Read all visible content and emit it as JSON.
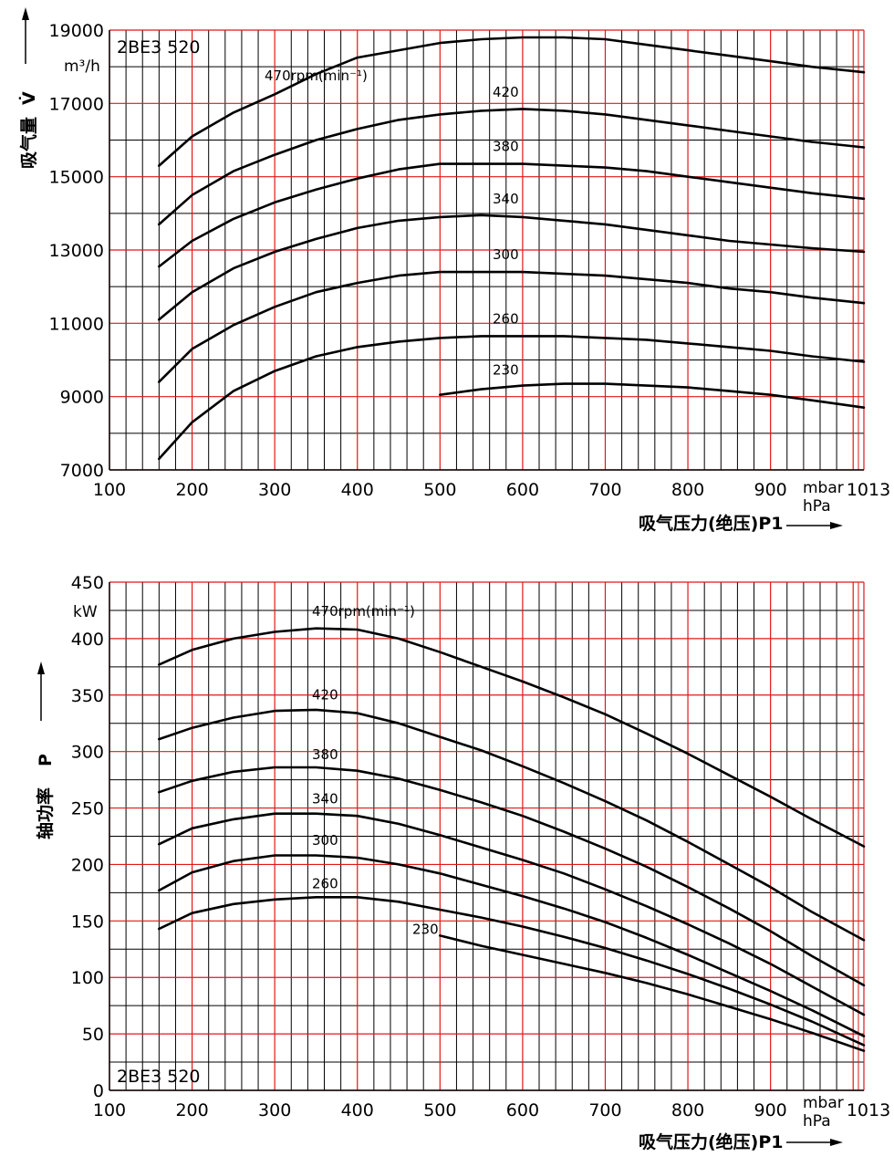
{
  "colors": {
    "major_grid": "#e01818",
    "minor_grid": "#000000",
    "curve": "#000000"
  },
  "chart_data": [
    {
      "type": "line",
      "model": "2BE3 520",
      "ylabel": "吸气量",
      "ylabel_symbol": "V̇",
      "yunit": "m³/h",
      "xlabel": "吸气压力(绝压)P1",
      "xunit_1": "mbar",
      "xunit_2": "hPa",
      "x_ticks": [
        "100",
        "200",
        "300",
        "400",
        "500",
        "600",
        "700",
        "800",
        "900",
        "1013"
      ],
      "y_ticks": [
        "7000",
        "9000",
        "11000",
        "13000",
        "15000",
        "17000",
        "19000"
      ],
      "xlim": [
        100,
        1013
      ],
      "ylim": [
        7000,
        19000
      ],
      "series": [
        {
          "name": "470rpm(min⁻¹)",
          "x": [
            160,
            200,
            250,
            300,
            350,
            400,
            450,
            500,
            550,
            600,
            650,
            700,
            750,
            800,
            850,
            900,
            950,
            1013
          ],
          "y": [
            15300,
            16100,
            16750,
            17250,
            17800,
            18250,
            18450,
            18650,
            18750,
            18800,
            18800,
            18750,
            18600,
            18450,
            18300,
            18150,
            18000,
            17850
          ]
        },
        {
          "name": "420",
          "x": [
            160,
            200,
            250,
            300,
            350,
            400,
            450,
            500,
            550,
            600,
            650,
            700,
            750,
            800,
            850,
            900,
            950,
            1013
          ],
          "y": [
            13700,
            14500,
            15150,
            15600,
            16000,
            16300,
            16550,
            16700,
            16800,
            16850,
            16800,
            16700,
            16550,
            16400,
            16250,
            16100,
            15950,
            15800
          ]
        },
        {
          "name": "380",
          "x": [
            160,
            200,
            250,
            300,
            350,
            400,
            450,
            500,
            550,
            600,
            650,
            700,
            750,
            800,
            850,
            900,
            950,
            1013
          ],
          "y": [
            12550,
            13250,
            13850,
            14300,
            14650,
            14950,
            15200,
            15350,
            15350,
            15350,
            15300,
            15250,
            15150,
            15000,
            14850,
            14700,
            14550,
            14400
          ]
        },
        {
          "name": "340",
          "x": [
            160,
            200,
            250,
            300,
            350,
            400,
            450,
            500,
            550,
            600,
            650,
            700,
            750,
            800,
            850,
            900,
            950,
            1013
          ],
          "y": [
            11100,
            11850,
            12500,
            12950,
            13300,
            13600,
            13800,
            13900,
            13950,
            13900,
            13800,
            13700,
            13550,
            13400,
            13250,
            13150,
            13050,
            12950
          ]
        },
        {
          "name": "300",
          "x": [
            160,
            200,
            250,
            300,
            350,
            400,
            450,
            500,
            550,
            600,
            650,
            700,
            750,
            800,
            850,
            900,
            950,
            1013
          ],
          "y": [
            9400,
            10300,
            10950,
            11450,
            11850,
            12100,
            12300,
            12400,
            12400,
            12400,
            12350,
            12300,
            12200,
            12100,
            11950,
            11850,
            11700,
            11550
          ]
        },
        {
          "name": "260",
          "x": [
            160,
            200,
            250,
            300,
            350,
            400,
            450,
            500,
            550,
            600,
            650,
            700,
            750,
            800,
            850,
            900,
            950,
            1013
          ],
          "y": [
            7300,
            8300,
            9150,
            9700,
            10100,
            10350,
            10500,
            10600,
            10650,
            10650,
            10650,
            10600,
            10550,
            10450,
            10350,
            10250,
            10100,
            9950
          ]
        },
        {
          "name": "230",
          "x": [
            500,
            550,
            600,
            650,
            700,
            750,
            800,
            850,
            900,
            950,
            1013
          ],
          "y": [
            9050,
            9200,
            9300,
            9350,
            9350,
            9300,
            9250,
            9150,
            9050,
            8900,
            8700
          ]
        }
      ]
    },
    {
      "type": "line",
      "model": "2BE3 520",
      "ylabel": "轴功率",
      "ylabel_symbol": "P",
      "yunit": "kW",
      "xlabel": "吸气压力(绝压)P1",
      "xunit_1": "mbar",
      "xunit_2": "hPa",
      "x_ticks": [
        "100",
        "200",
        "300",
        "400",
        "500",
        "600",
        "700",
        "800",
        "900",
        "1013"
      ],
      "y_ticks": [
        "0",
        "50",
        "100",
        "150",
        "200",
        "250",
        "300",
        "350",
        "400",
        "450"
      ],
      "xlim": [
        100,
        1013
      ],
      "ylim": [
        0,
        450
      ],
      "series": [
        {
          "name": "470rpm(min⁻¹)",
          "x": [
            160,
            200,
            250,
            300,
            350,
            400,
            450,
            500,
            550,
            600,
            650,
            700,
            750,
            800,
            850,
            900,
            950,
            1013
          ],
          "y": [
            377,
            390,
            400,
            406,
            409,
            408,
            400,
            388,
            375,
            362,
            348,
            333,
            316,
            298,
            279,
            260,
            240,
            216
          ]
        },
        {
          "name": "420",
          "x": [
            160,
            200,
            250,
            300,
            350,
            400,
            450,
            500,
            550,
            600,
            650,
            700,
            750,
            800,
            850,
            900,
            950,
            1013
          ],
          "y": [
            311,
            321,
            330,
            336,
            337,
            334,
            325,
            313,
            301,
            287,
            272,
            256,
            239,
            220,
            200,
            180,
            158,
            133
          ]
        },
        {
          "name": "380",
          "x": [
            160,
            200,
            250,
            300,
            350,
            400,
            450,
            500,
            550,
            600,
            650,
            700,
            750,
            800,
            850,
            900,
            950,
            1013
          ],
          "y": [
            264,
            274,
            282,
            286,
            286,
            283,
            276,
            266,
            255,
            243,
            229,
            214,
            198,
            180,
            161,
            141,
            119,
            93
          ]
        },
        {
          "name": "340",
          "x": [
            160,
            200,
            250,
            300,
            350,
            400,
            450,
            500,
            550,
            600,
            650,
            700,
            750,
            800,
            850,
            900,
            950,
            1013
          ],
          "y": [
            218,
            232,
            240,
            245,
            245,
            243,
            236,
            226,
            215,
            204,
            192,
            178,
            163,
            147,
            130,
            112,
            92,
            67
          ]
        },
        {
          "name": "300",
          "x": [
            160,
            200,
            250,
            300,
            350,
            400,
            450,
            500,
            550,
            600,
            650,
            700,
            750,
            800,
            850,
            900,
            950,
            1013
          ],
          "y": [
            177,
            193,
            203,
            208,
            208,
            206,
            200,
            192,
            182,
            172,
            161,
            149,
            135,
            120,
            104,
            88,
            71,
            48
          ]
        },
        {
          "name": "260",
          "x": [
            160,
            200,
            250,
            300,
            350,
            400,
            450,
            500,
            550,
            600,
            650,
            700,
            750,
            800,
            850,
            900,
            950,
            1013
          ],
          "y": [
            143,
            157,
            165,
            169,
            171,
            171,
            167,
            160,
            153,
            145,
            136,
            126,
            115,
            103,
            90,
            76,
            61,
            40
          ]
        },
        {
          "name": "230",
          "x": [
            500,
            550,
            600,
            650,
            700,
            750,
            800,
            850,
            900,
            950,
            1013
          ],
          "y": [
            137,
            128,
            120,
            112,
            104,
            95,
            85,
            74,
            63,
            51,
            35
          ]
        }
      ]
    }
  ]
}
